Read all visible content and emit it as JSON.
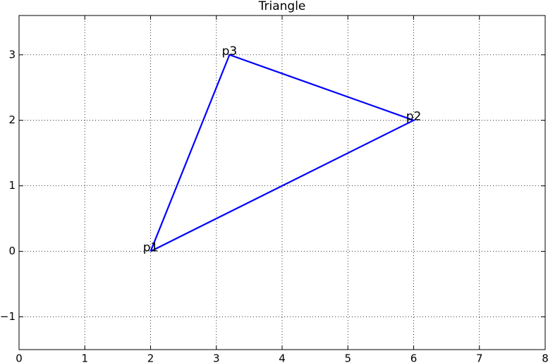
{
  "chart_data": {
    "type": "line",
    "title": "Triangle",
    "x": [
      2,
      6,
      3.2,
      2
    ],
    "series": [
      {
        "color": "#0000ff",
        "values": [
          0,
          2,
          3,
          0
        ]
      }
    ],
    "annotations": [
      {
        "text": "p1",
        "x": 2,
        "y": 0
      },
      {
        "text": "p2",
        "x": 6,
        "y": 2
      },
      {
        "text": "p3",
        "x": 3.2,
        "y": 3
      }
    ],
    "xlim": [
      0,
      8
    ],
    "xticks": [
      0,
      1,
      2,
      3,
      4,
      5,
      6,
      7,
      8
    ],
    "ylim": [
      -1.5,
      3.6
    ],
    "yticks": [
      {
        "value": -1,
        "label": "−1"
      },
      0,
      1,
      2,
      3
    ],
    "grid": true
  }
}
